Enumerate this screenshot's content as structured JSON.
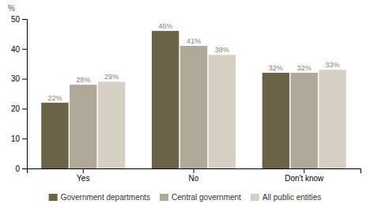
{
  "chart_data": {
    "type": "bar",
    "categories": [
      "Yes",
      "No",
      "Don't know"
    ],
    "series": [
      {
        "name": "Government departments",
        "color": "#6b6347",
        "values": [
          22,
          46,
          32
        ],
        "value_labels": [
          "22%",
          "46%",
          "32%"
        ]
      },
      {
        "name": "Central government",
        "color": "#b0a898",
        "values": [
          28,
          41,
          32
        ],
        "value_labels": [
          "28%",
          "41%",
          "32%"
        ]
      },
      {
        "name": "All public entities",
        "color": "#d6d0c4",
        "values": [
          29,
          38,
          33
        ],
        "value_labels": [
          "29%",
          "38%",
          "33%"
        ]
      }
    ],
    "ylabel": "%",
    "ylim": [
      0,
      50
    ],
    "yticks": [
      0,
      10,
      20,
      30,
      40,
      50
    ],
    "grid": false,
    "legend": "bottom",
    "data_labels": true
  }
}
